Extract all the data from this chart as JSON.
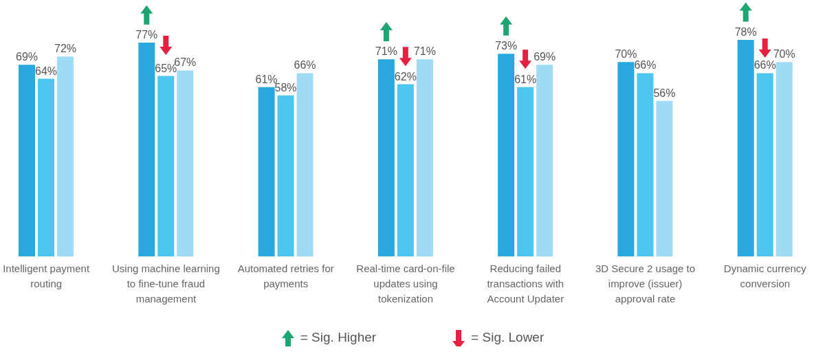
{
  "chart_data": {
    "type": "bar",
    "categories": [
      "Intelligent payment routing",
      "Using machine learning to fine-tune fraud management",
      "Automated retries for payments",
      "Real-time card-on-file updates using tokenization",
      "Reducing failed transactions with Account Updater",
      "3D Secure 2 usage to improve (issuer) approval rate",
      "Dynamic currency conversion"
    ],
    "series": [
      {
        "color": "#29a8e0",
        "values": [
          69,
          77,
          61,
          71,
          73,
          70,
          78
        ],
        "value_labels": [
          "69%",
          "77%",
          "61%",
          "71%",
          "73%",
          "70%",
          "78%"
        ]
      },
      {
        "color": "#4dc5f0",
        "values": [
          64,
          65,
          58,
          62,
          61,
          66,
          66
        ],
        "value_labels": [
          "64%",
          "65%",
          "58%",
          "62%",
          "61%",
          "66%",
          "66%"
        ]
      },
      {
        "color": "#9fdbf5",
        "values": [
          72,
          67,
          66,
          71,
          69,
          56,
          70
        ],
        "value_labels": [
          "72%",
          "67%",
          "66%",
          "71%",
          "69%",
          "56%",
          "70%"
        ]
      },
      {
        "type": "scatter",
        "name": "= Sig. Higher",
        "color": "#1ea672",
        "x": [
          "Using machine learning to fine-tune fraud management",
          "Real-time card-on-file updates using tokenization",
          "Reducing failed transactions with Account Updater",
          "Dynamic currency conversion"
        ],
        "values": [
          87,
          81,
          83,
          88
        ]
      },
      {
        "type": "scatter",
        "name": "= Sig. Lower",
        "color": "#e8203f",
        "x": [
          "Using machine learning to fine-tune fraud management",
          "Real-time card-on-file updates using tokenization",
          "Reducing failed transactions with Account Updater",
          "Dynamic currency conversion"
        ],
        "values": [
          76,
          72,
          71,
          75
        ]
      }
    ],
    "legend": "bottom"
  }
}
